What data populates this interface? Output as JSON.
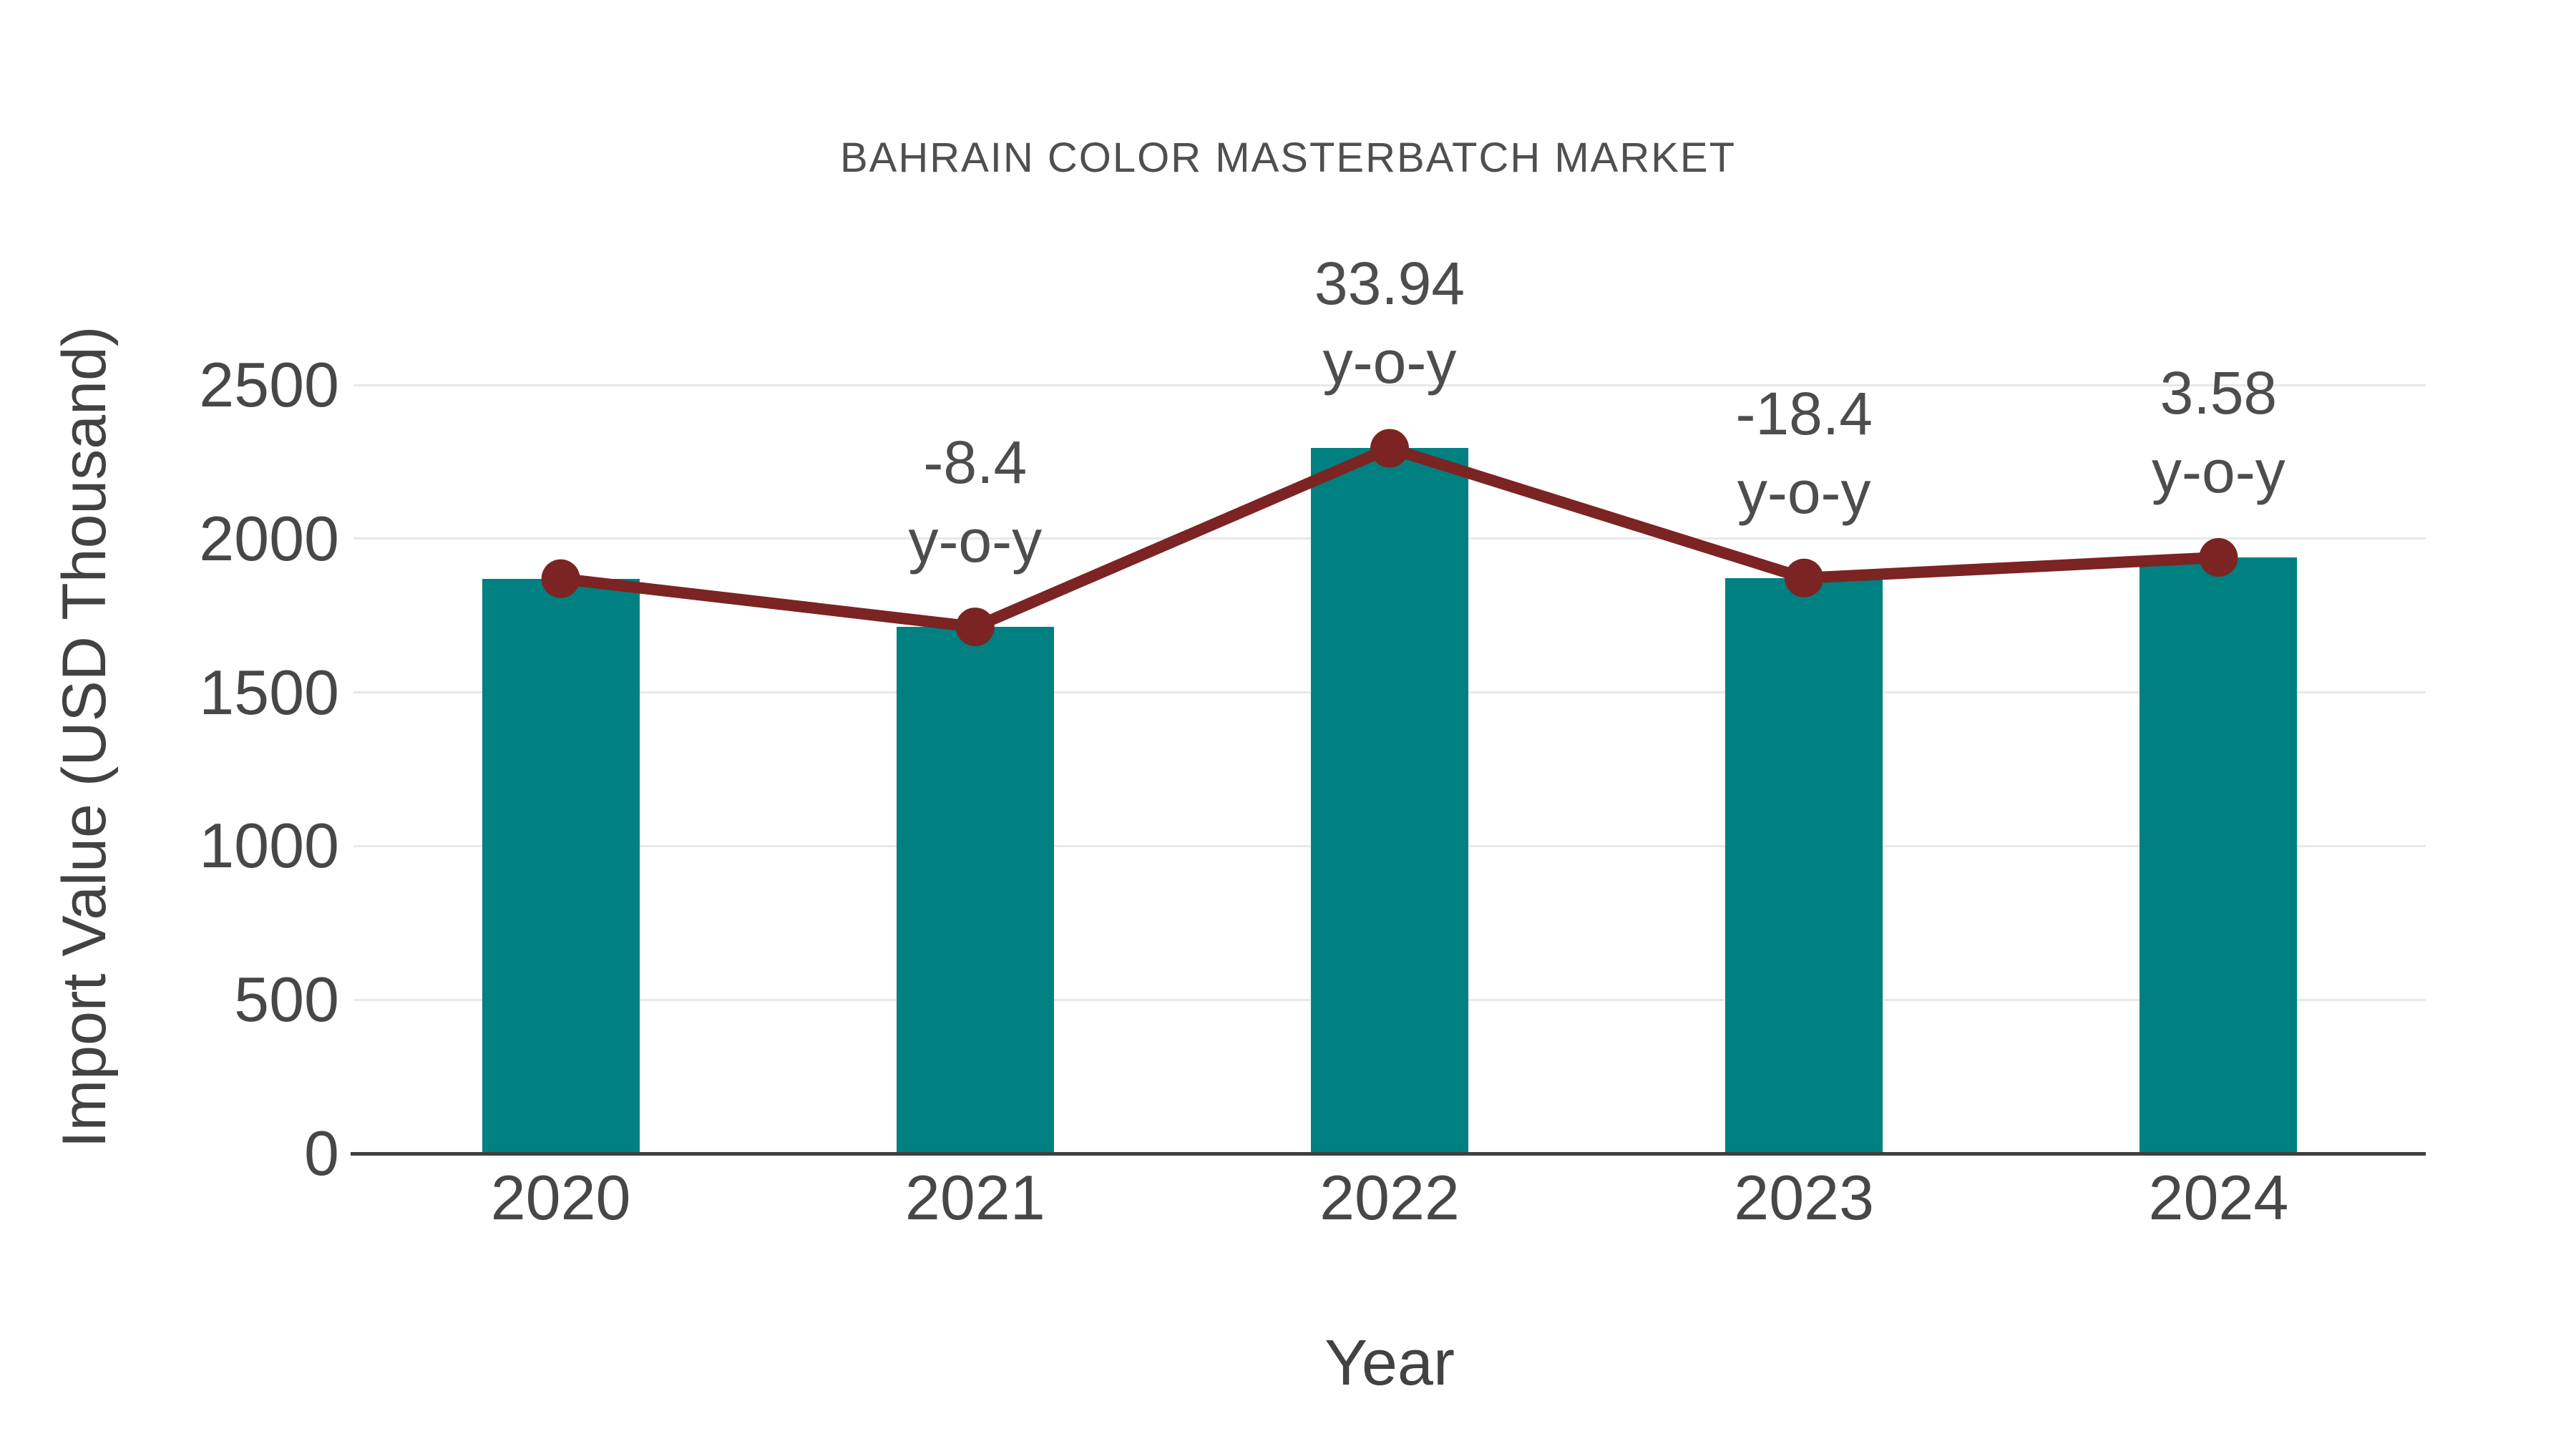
{
  "colors": {
    "bar": "#008080",
    "line": "#7b2423",
    "marker": "#7b2423",
    "grid": "#e8e8e8",
    "axis": "#3f3f3f",
    "tick_text": "#474747",
    "annotation_text": "#4d4d4d",
    "title_text": "#4f4f4f"
  },
  "chart_data": {
    "type": "bar",
    "title": "BAHRAIN COLOR MASTERBATCH MARKET",
    "xlabel": "Year",
    "ylabel": "Import Value (USD Thousand)",
    "categories": [
      "2020",
      "2021",
      "2022",
      "2023",
      "2024"
    ],
    "series": [
      {
        "name": "Import Value bars",
        "type": "bar",
        "values": [
          1870,
          1713,
          2294,
          1872,
          1939
        ],
        "color": "#008080"
      },
      {
        "name": "Import Value trend line",
        "type": "line",
        "values": [
          1870,
          1713,
          2294,
          1872,
          1939
        ],
        "color": "#7b2423"
      }
    ],
    "annotations": [
      {
        "category": "2021",
        "value": "-8.4",
        "label": "y-o-y"
      },
      {
        "category": "2022",
        "value": "33.94",
        "label": "y-o-y"
      },
      {
        "category": "2023",
        "value": "-18.4",
        "label": "y-o-y"
      },
      {
        "category": "2024",
        "value": "3.58",
        "label": "y-o-y"
      }
    ],
    "yticks": [
      0,
      500,
      1000,
      1500,
      2000,
      2500
    ],
    "ylim": [
      0,
      2500
    ],
    "grid": true,
    "legend": "none"
  }
}
